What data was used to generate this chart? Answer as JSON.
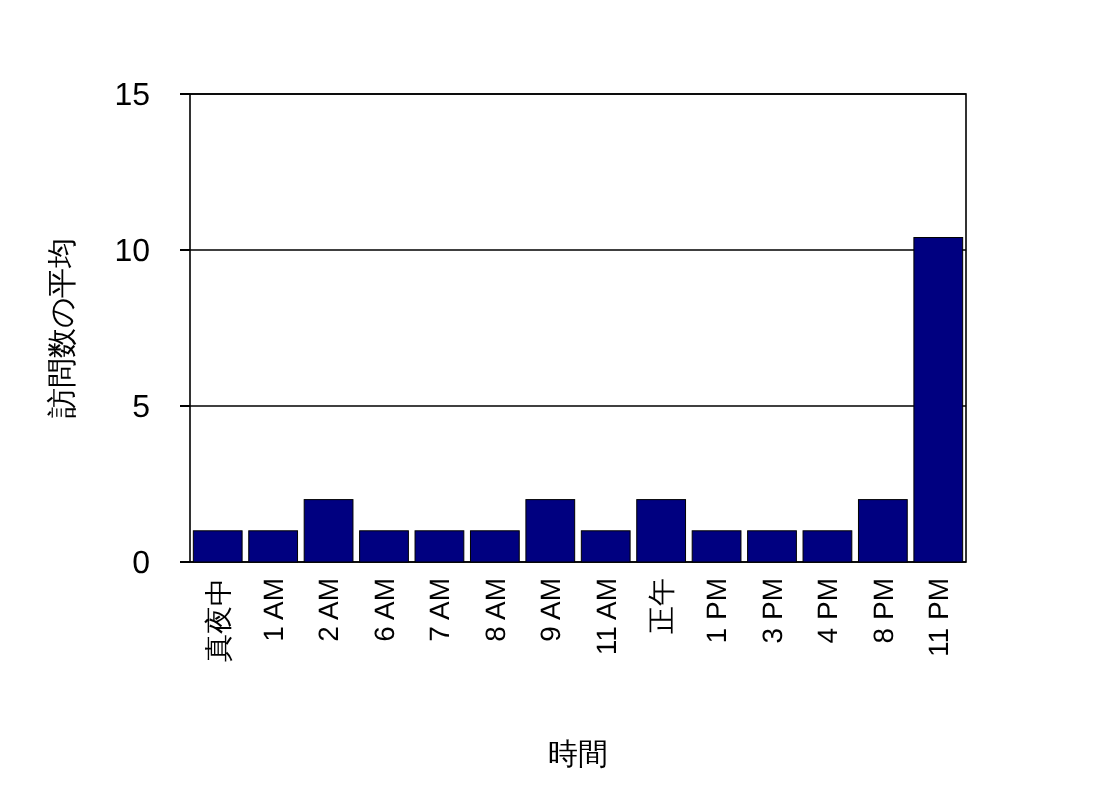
{
  "chart_data": {
    "type": "bar",
    "ylabel": "訪問数の平均",
    "xlabel": "時間",
    "categories": [
      "真夜中",
      "1 AM",
      "2 AM",
      "6 AM",
      "7 AM",
      "8 AM",
      "9 AM",
      "11 AM",
      "正午",
      "1 PM",
      "3 PM",
      "4 PM",
      "8 PM",
      "11 PM"
    ],
    "values": [
      1,
      1,
      2,
      1,
      1,
      1,
      2,
      1,
      2,
      1,
      1,
      1,
      2,
      10.4
    ],
    "color": "#000080",
    "ylim": [
      0,
      15
    ],
    "yticks": [
      0,
      5,
      10,
      15
    ],
    "grid": "y"
  }
}
